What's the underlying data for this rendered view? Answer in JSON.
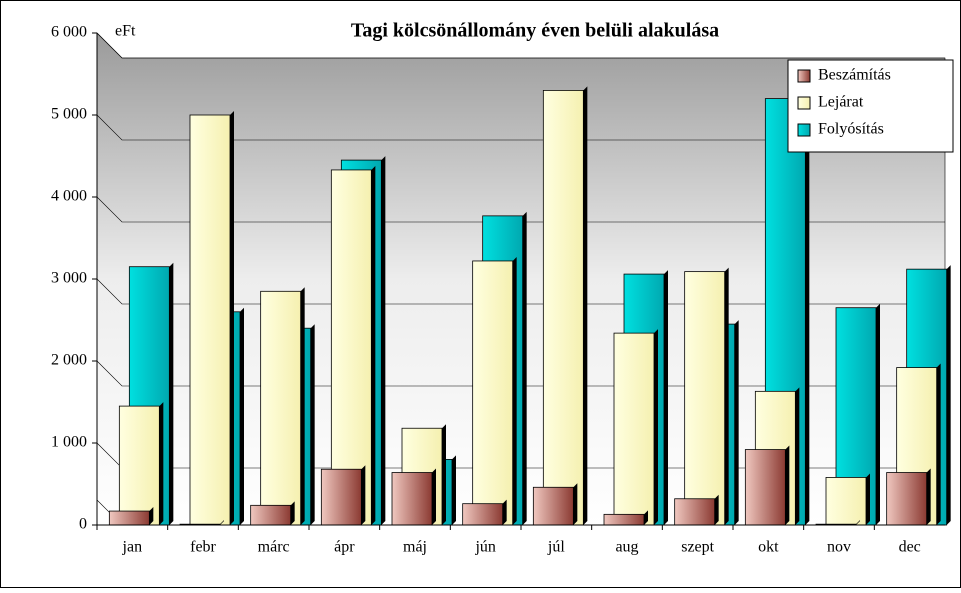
{
  "chart_data": {
    "type": "bar",
    "title": "Tagi kölcsönállomány éven belüli alakulása",
    "y_label": "eFt",
    "categories": [
      "jan",
      "febr",
      "márc",
      "ápr",
      "máj",
      "jún",
      "júl",
      "aug",
      "szept",
      "okt",
      "nov",
      "dec"
    ],
    "series": [
      {
        "name": "Beszámítás",
        "color": "#a0524d",
        "values": [
          170,
          10,
          240,
          680,
          640,
          260,
          460,
          130,
          320,
          920,
          10,
          640
        ]
      },
      {
        "name": "Lejárat",
        "color": "#ffffcc",
        "values": [
          1450,
          5000,
          2850,
          4330,
          1180,
          3220,
          5300,
          2340,
          3090,
          1630,
          580,
          1920
        ]
      },
      {
        "name": "Folyósítás",
        "color": "#00cccc",
        "values": [
          3150,
          2600,
          2400,
          4450,
          800,
          3770,
          0,
          3060,
          2450,
          5200,
          2650,
          3120
        ]
      }
    ],
    "ylim": [
      0,
      6000
    ],
    "yticks": [
      0,
      {
        "value": 1000,
        "label": "1 000"
      },
      {
        "value": 2000,
        "label": "2 000"
      },
      {
        "value": 3000,
        "label": "3 000"
      },
      {
        "value": 4000,
        "label": "4 000"
      },
      {
        "value": 5000,
        "label": "5 000"
      },
      {
        "value": 6000,
        "label": "6 000"
      }
    ],
    "grid": true,
    "legend": "top-right"
  }
}
